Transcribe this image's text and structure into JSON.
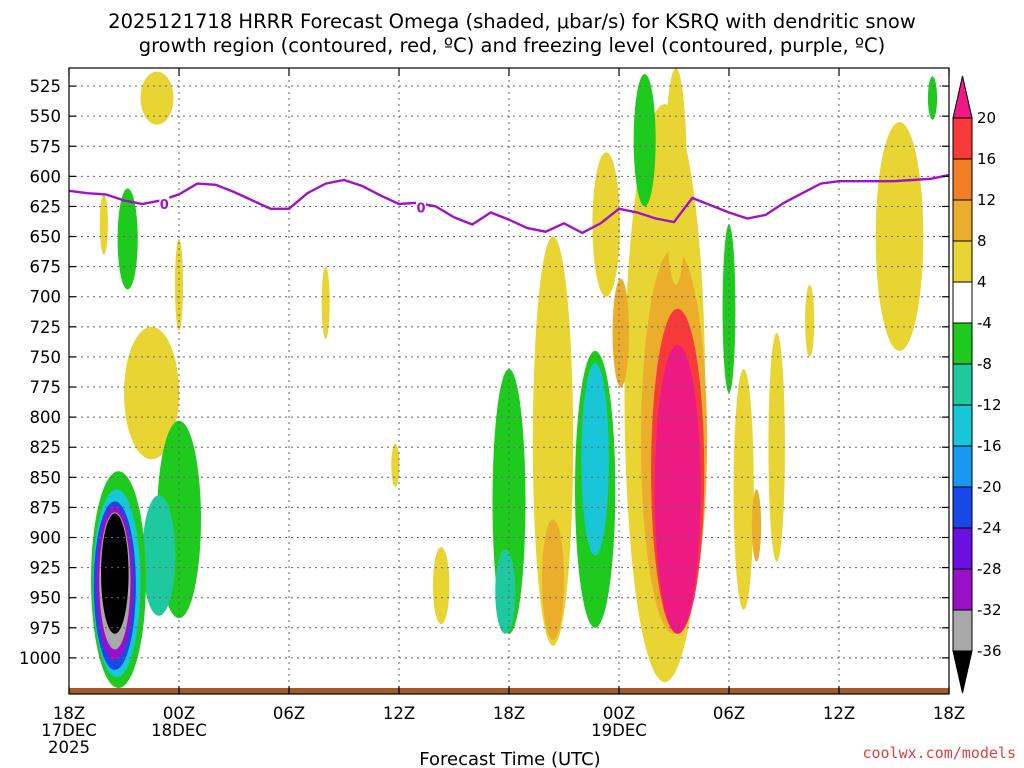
{
  "chart_data": {
    "type": "heatmap",
    "title_line1": "2025121718 HRRR Forecast Omega (shaded, μbar/s) for KSRQ with dendritic snow",
    "title_line2": "growth region (contoured, red, ºC) and freezing level (contoured, purple, ºC)",
    "xlabel": "Forecast Time (UTC)",
    "x_hours_range": [
      0,
      48
    ],
    "x_ticks": [
      {
        "hour": 0,
        "lines": [
          "18Z",
          "17DEC",
          "2025"
        ]
      },
      {
        "hour": 6,
        "lines": [
          "00Z",
          "18DEC"
        ]
      },
      {
        "hour": 12,
        "lines": [
          "06Z"
        ]
      },
      {
        "hour": 18,
        "lines": [
          "12Z"
        ]
      },
      {
        "hour": 24,
        "lines": [
          "18Z"
        ]
      },
      {
        "hour": 30,
        "lines": [
          "00Z",
          "19DEC"
        ]
      },
      {
        "hour": 36,
        "lines": [
          "06Z"
        ]
      },
      {
        "hour": 42,
        "lines": [
          "12Z"
        ]
      },
      {
        "hour": 48,
        "lines": [
          "18Z"
        ]
      }
    ],
    "y_range_mb": [
      1030,
      510
    ],
    "y_ticks": [
      "525",
      "550",
      "575",
      "600",
      "625",
      "650",
      "675",
      "700",
      "725",
      "750",
      "775",
      "800",
      "825",
      "850",
      "875",
      "900",
      "925",
      "950",
      "975",
      "1000"
    ],
    "colorbar": {
      "labels": [
        "20",
        "16",
        "12",
        "8",
        "4",
        "-4",
        "-8",
        "-12",
        "-16",
        "-20",
        "-24",
        "-28",
        "-32",
        "-36"
      ],
      "colors": [
        "#ee1a84",
        "#f83a3a",
        "#f07e24",
        "#eaae2c",
        "#e8d432",
        "#ffffff",
        "#1fca1f",
        "#1fc9a0",
        "#18c6d8",
        "#1898ee",
        "#1848e8",
        "#6a10e0",
        "#9a10c8",
        "#a8a8a8",
        "#000000"
      ]
    },
    "freezing_level": {
      "label": "0",
      "color": "#a012c8",
      "points": [
        [
          0,
          612
        ],
        [
          1,
          614
        ],
        [
          2,
          615
        ],
        [
          3,
          620
        ],
        [
          4,
          623
        ],
        [
          5,
          620
        ],
        [
          6,
          615
        ],
        [
          7,
          606
        ],
        [
          8,
          607
        ],
        [
          9,
          613
        ],
        [
          10,
          620
        ],
        [
          11,
          627
        ],
        [
          12,
          627
        ],
        [
          13,
          614
        ],
        [
          14,
          606
        ],
        [
          15,
          603
        ],
        [
          16,
          608
        ],
        [
          17,
          616
        ],
        [
          18,
          623
        ],
        [
          19,
          622
        ],
        [
          20,
          625
        ],
        [
          21,
          634
        ],
        [
          22,
          640
        ],
        [
          23,
          630
        ],
        [
          24,
          636
        ],
        [
          25,
          643
        ],
        [
          26,
          646
        ],
        [
          27,
          639
        ],
        [
          28,
          647
        ],
        [
          29,
          639
        ],
        [
          30,
          627
        ],
        [
          31,
          630
        ],
        [
          32,
          635
        ],
        [
          33,
          638
        ],
        [
          34,
          618
        ],
        [
          35,
          624
        ],
        [
          36,
          630
        ],
        [
          37,
          635
        ],
        [
          38,
          632
        ],
        [
          39,
          622
        ],
        [
          40,
          614
        ],
        [
          41,
          606
        ],
        [
          42,
          604
        ],
        [
          43,
          604
        ],
        [
          44,
          604
        ],
        [
          45,
          604
        ],
        [
          46,
          603
        ],
        [
          47,
          602
        ],
        [
          48,
          599
        ]
      ]
    },
    "omega_features": [
      {
        "name": "upper-left-yellow",
        "v": 4,
        "hour": 4.8,
        "p": 535,
        "rx": 0.9,
        "ry": 22
      },
      {
        "name": "top-right-green",
        "v": -6,
        "hour": 47.1,
        "p": 535,
        "rx": 0.25,
        "ry": 18
      },
      {
        "name": "left-green-column",
        "v": -6,
        "hour": 3.2,
        "p": 652,
        "rx": 0.55,
        "ry": 42
      },
      {
        "name": "left-yellow-sliver",
        "v": 4,
        "hour": 1.9,
        "p": 640,
        "rx": 0.22,
        "ry": 25
      },
      {
        "name": "thin-yellow-near-00z",
        "v": 4,
        "hour": 6.0,
        "p": 690,
        "rx": 0.22,
        "ry": 38
      },
      {
        "name": "yellow-sliver-09z",
        "v": 4,
        "hour": 14.0,
        "p": 705,
        "rx": 0.22,
        "ry": 30
      },
      {
        "name": "yellow-column-left",
        "v": 4,
        "hour": 4.5,
        "p": 780,
        "rx": 1.5,
        "ry": 55
      },
      {
        "name": "green-band-left",
        "v": -6,
        "hour": 6.0,
        "p": 885,
        "rx": 1.2,
        "ry": 82
      },
      {
        "name": "teal-band-left",
        "v": -10,
        "hour": 4.9,
        "p": 915,
        "rx": 0.9,
        "ry": 50
      },
      {
        "name": "descent-green",
        "v": -6,
        "hour": 2.7,
        "p": 935,
        "rx": 1.5,
        "ry": 90
      },
      {
        "name": "descent-teal",
        "v": -12,
        "hour": 2.6,
        "p": 938,
        "rx": 1.3,
        "ry": 78
      },
      {
        "name": "descent-blue",
        "v": -20,
        "hour": 2.5,
        "p": 940,
        "rx": 1.15,
        "ry": 70
      },
      {
        "name": "descent-purple",
        "v": -28,
        "hour": 2.5,
        "p": 938,
        "rx": 1.0,
        "ry": 64
      },
      {
        "name": "descent-gray",
        "v": -33,
        "hour": 2.5,
        "p": 936,
        "rx": 0.85,
        "ry": 57
      },
      {
        "name": "descent-black",
        "v": -38,
        "hour": 2.5,
        "p": 930,
        "rx": 0.75,
        "ry": 50
      },
      {
        "name": "yellow-blob-12z",
        "v": 4,
        "hour": 17.8,
        "p": 840,
        "rx": 0.22,
        "ry": 18
      },
      {
        "name": "yellow-pulse-15z",
        "v": 4,
        "hour": 20.3,
        "p": 940,
        "rx": 0.45,
        "ry": 32
      },
      {
        "name": "green-column-18z",
        "v": -6,
        "hour": 24.0,
        "p": 870,
        "rx": 0.9,
        "ry": 110
      },
      {
        "name": "teal-column-18z",
        "v": -10,
        "hour": 23.8,
        "p": 945,
        "rx": 0.55,
        "ry": 35
      },
      {
        "name": "yellow-column-20z",
        "v": 4,
        "hour": 26.4,
        "p": 820,
        "rx": 1.1,
        "ry": 170
      },
      {
        "name": "orange-column-20z",
        "v": 10,
        "hour": 26.4,
        "p": 935,
        "rx": 0.6,
        "ry": 50
      },
      {
        "name": "green-column-21z",
        "v": -6,
        "hour": 28.7,
        "p": 860,
        "rx": 1.1,
        "ry": 115
      },
      {
        "name": "teal-column-21z",
        "v": -13,
        "hour": 28.7,
        "p": 835,
        "rx": 0.75,
        "ry": 80
      },
      {
        "name": "yellow-upper-22z",
        "v": 4,
        "hour": 29.3,
        "p": 640,
        "rx": 0.75,
        "ry": 60
      },
      {
        "name": "yellow-ascent-wide",
        "v": 4,
        "hour": 32.5,
        "p": 780,
        "rx": 2.2,
        "ry": 240
      },
      {
        "name": "orange-ascent",
        "v": 10,
        "hour": 33.0,
        "p": 820,
        "rx": 1.8,
        "ry": 160
      },
      {
        "name": "red-ascent",
        "v": 17,
        "hour": 33.2,
        "p": 845,
        "rx": 1.45,
        "ry": 135
      },
      {
        "name": "magenta-core",
        "v": 22,
        "hour": 33.2,
        "p": 860,
        "rx": 1.25,
        "ry": 120
      },
      {
        "name": "orange-streak-01z",
        "v": 10,
        "hour": 30.1,
        "p": 730,
        "rx": 0.45,
        "ry": 45
      },
      {
        "name": "yellow-top-02z",
        "v": 4,
        "hour": 33.1,
        "p": 600,
        "rx": 0.6,
        "ry": 90
      },
      {
        "name": "green-upper-01z",
        "v": -6,
        "hour": 31.4,
        "p": 570,
        "rx": 0.6,
        "ry": 55
      },
      {
        "name": "green-column-06z",
        "v": -6,
        "hour": 36.0,
        "p": 710,
        "rx": 0.35,
        "ry": 70
      },
      {
        "name": "yellow-column-07z",
        "v": 4,
        "hour": 36.8,
        "p": 860,
        "rx": 0.55,
        "ry": 100
      },
      {
        "name": "orange-sliver-07z",
        "v": 10,
        "hour": 37.5,
        "p": 890,
        "rx": 0.25,
        "ry": 30
      },
      {
        "name": "yellow-column-09z",
        "v": 4,
        "hour": 38.6,
        "p": 825,
        "rx": 0.45,
        "ry": 95
      },
      {
        "name": "yellow-sliver-10z",
        "v": 4,
        "hour": 40.4,
        "p": 720,
        "rx": 0.25,
        "ry": 30
      },
      {
        "name": "yellow-column-right",
        "v": 4,
        "hour": 45.3,
        "p": 650,
        "rx": 1.3,
        "ry": 95
      }
    ]
  },
  "credit": "coolwx.com/models"
}
